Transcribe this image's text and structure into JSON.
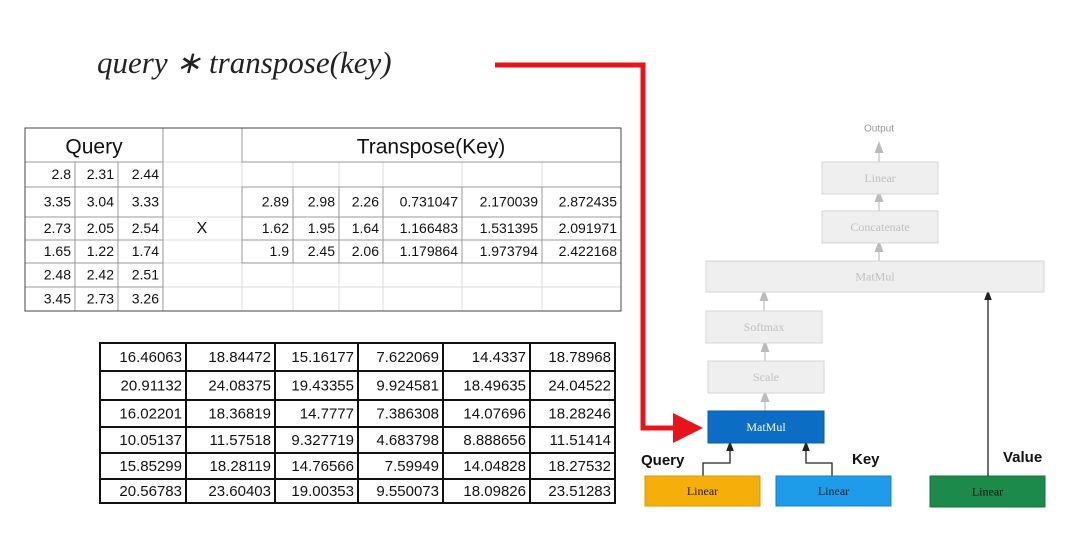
{
  "formula": "query ∗ transpose(key)",
  "query_table": {
    "title": "Query",
    "rows": [
      [
        "2.8",
        "2.31",
        "2.44"
      ],
      [
        "3.35",
        "3.04",
        "3.33"
      ],
      [
        "2.73",
        "2.05",
        "2.54"
      ],
      [
        "1.65",
        "1.22",
        "1.74"
      ],
      [
        "2.48",
        "2.42",
        "2.51"
      ],
      [
        "3.45",
        "2.73",
        "3.26"
      ]
    ]
  },
  "operator": "X",
  "transpose_table": {
    "title": "Transpose(Key)",
    "rows": [
      [
        "2.89",
        "2.98",
        "2.26",
        "0.731047",
        "2.170039",
        "2.872435"
      ],
      [
        "1.62",
        "1.95",
        "1.64",
        "1.166483",
        "1.531395",
        "2.091971"
      ],
      [
        "1.9",
        "2.45",
        "2.06",
        "1.179864",
        "1.973794",
        "2.422168"
      ]
    ]
  },
  "result_table": {
    "rows": [
      [
        "16.46063",
        "18.84472",
        "15.16177",
        "7.622069",
        "14.4337",
        "18.78968"
      ],
      [
        "20.91132",
        "24.08375",
        "19.43355",
        "9.924581",
        "18.49635",
        "24.04522"
      ],
      [
        "16.02201",
        "18.36819",
        "14.7777",
        "7.386308",
        "14.07696",
        "18.28246"
      ],
      [
        "10.05137",
        "11.57518",
        "9.327719",
        "4.683798",
        "8.888656",
        "11.51414"
      ],
      [
        "15.85299",
        "18.28119",
        "14.76566",
        "7.59949",
        "14.04828",
        "18.27532"
      ],
      [
        "20.56783",
        "23.60403",
        "19.00353",
        "9.550073",
        "18.09826",
        "23.51283"
      ]
    ]
  },
  "diagram": {
    "output": "Output",
    "nodes": [
      {
        "label": "Linear"
      },
      {
        "label": "Concatenate"
      },
      {
        "label": "MatMul"
      },
      {
        "label": "Softmax"
      },
      {
        "label": "Scale"
      },
      {
        "label": "MatMul"
      },
      {
        "label": "Linear"
      },
      {
        "label": "Linear"
      },
      {
        "label": "Linear"
      }
    ],
    "inputs": [
      "Query",
      "Key",
      "Value"
    ]
  }
}
